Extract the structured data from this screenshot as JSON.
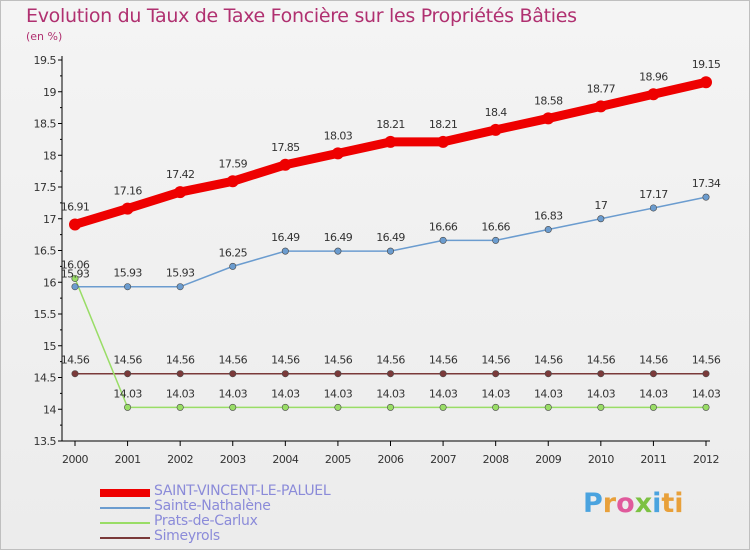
{
  "header": {
    "title": "Evolution du Taux de Taxe Foncière sur les Propriétés Bâties",
    "subtitle": "(en %)"
  },
  "logo": {
    "letters": [
      "P",
      "r",
      "o",
      "x",
      "i",
      "ti"
    ]
  },
  "chart_data": {
    "type": "line",
    "title": "Evolution du Taux de Taxe Foncière sur les Propriétés Bâties",
    "ylabel": "(en %)",
    "xlabel": "",
    "x": [
      "2000",
      "2001",
      "2002",
      "2003",
      "2004",
      "2005",
      "2006",
      "2007",
      "2008",
      "2009",
      "2010",
      "2011",
      "2012"
    ],
    "ylim": [
      13.5,
      19.5
    ],
    "yticks": [
      "13.5",
      "14",
      "14.5",
      "15",
      "15.5",
      "16",
      "16.5",
      "17",
      "17.5",
      "18",
      "18.5",
      "19",
      "19.5"
    ],
    "grid": false,
    "legend_position": "bottom-left",
    "series": [
      {
        "name": "SAINT-VINCENT-LE-PALUEL",
        "color": "#ee0000",
        "values": [
          16.91,
          17.16,
          17.42,
          17.59,
          17.85,
          18.03,
          18.21,
          18.21,
          18.4,
          18.58,
          18.77,
          18.96,
          19.15
        ],
        "labels": [
          "16.91",
          "17.16",
          "17.42",
          "17.59",
          "17.85",
          "18.03",
          "18.21",
          "18.21",
          "18.4",
          "18.58",
          "18.77",
          "18.96",
          "19.15"
        ]
      },
      {
        "name": "Sainte-Nathalène",
        "color": "#6b9ccf",
        "values": [
          15.93,
          15.93,
          15.93,
          16.25,
          16.49,
          16.49,
          16.49,
          16.66,
          16.66,
          16.83,
          17,
          17.17,
          17.34
        ],
        "labels": [
          "15.93",
          "15.93",
          "15.93",
          "16.25",
          "16.49",
          "16.49",
          "16.49",
          "16.66",
          "16.66",
          "16.83",
          "17",
          "17.17",
          "17.34"
        ]
      },
      {
        "name": "Prats-de-Carlux",
        "color": "#99dd66",
        "values": [
          16.06,
          14.03,
          14.03,
          14.03,
          14.03,
          14.03,
          14.03,
          14.03,
          14.03,
          14.03,
          14.03,
          14.03,
          14.03
        ],
        "labels": [
          "16.06",
          "14.03",
          "14.03",
          "14.03",
          "14.03",
          "14.03",
          "14.03",
          "14.03",
          "14.03",
          "14.03",
          "14.03",
          "14.03",
          "14.03"
        ]
      },
      {
        "name": "Simeyrols",
        "color": "#7a3a3a",
        "values": [
          14.56,
          14.56,
          14.56,
          14.56,
          14.56,
          14.56,
          14.56,
          14.56,
          14.56,
          14.56,
          14.56,
          14.56,
          14.56
        ],
        "labels": [
          "14.56",
          "14.56",
          "14.56",
          "14.56",
          "14.56",
          "14.56",
          "14.56",
          "14.56",
          "14.56",
          "14.56",
          "14.56",
          "14.56",
          "14.56"
        ]
      }
    ]
  }
}
